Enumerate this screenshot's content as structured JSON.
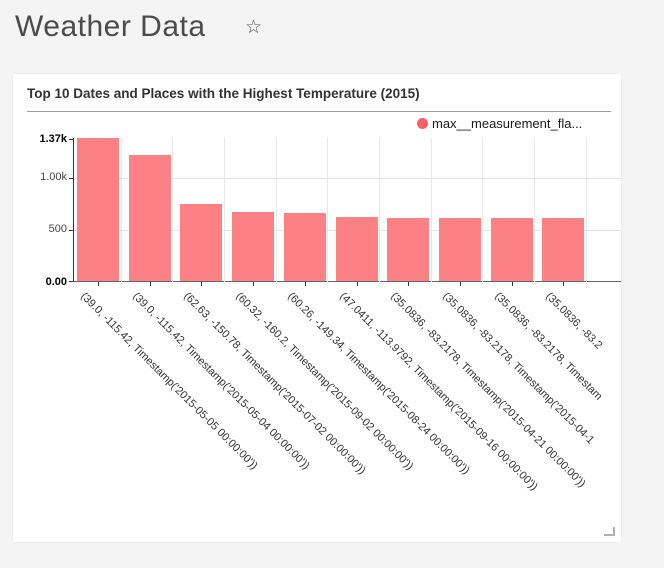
{
  "page": {
    "title": "Weather Data",
    "background_color": "#f4f4f4"
  },
  "widget": {
    "title": "Top 10 Dates and Places with the Highest Temperature (2015)",
    "legend": {
      "label": "max__measurement_fla...",
      "marker_color": "#fa5f68"
    }
  },
  "chart_data": {
    "type": "bar",
    "title": "Top 10 Dates and Places with the Highest Temperature (2015)",
    "series": [
      {
        "name": "max__measurement_fla...",
        "color": "#fc8185",
        "values": [
          1370,
          1212,
          741,
          657,
          649,
          614,
          605,
          604,
          603,
          602
        ]
      }
    ],
    "categories": [
      "(39.0, -115.42, Timestamp('2015-05-05 00:00:00'))",
      "(39.0, -115.42, Timestamp('2015-05-04 00:00:00'))",
      "(62.63, -150.78, Timestamp('2015-07-02 00:00:00'))",
      "(60.32, -160.2, Timestamp('2015-09-02 00:00:00'))",
      "(60.26, -149.34, Timestamp('2015-08-24 00:00:00'))",
      "(47.0411, -113.9792, Timestamp('2015-09-16 00:00:00'))",
      "(35.0836, -83.2178, Timestamp('2015-04-21 00:00:00'))",
      "(35.0836, -83.2178, Timestamp('2015-04-1",
      "(35.0836, -83.2178, Timestam",
      "(35.0836, -83.2"
    ],
    "ylim": [
      0,
      1370
    ],
    "yticks": [
      {
        "label": "0.00",
        "value": 0,
        "bold": true
      },
      {
        "label": "500",
        "value": 500,
        "bold": false
      },
      {
        "label": "1.00k",
        "value": 1000,
        "bold": false
      },
      {
        "label": "1.37k",
        "value": 1370,
        "bold": true
      }
    ],
    "xlabel": "",
    "ylabel": "",
    "grid": true,
    "legend_position": "top-right",
    "x_tick_rotation": 45
  }
}
